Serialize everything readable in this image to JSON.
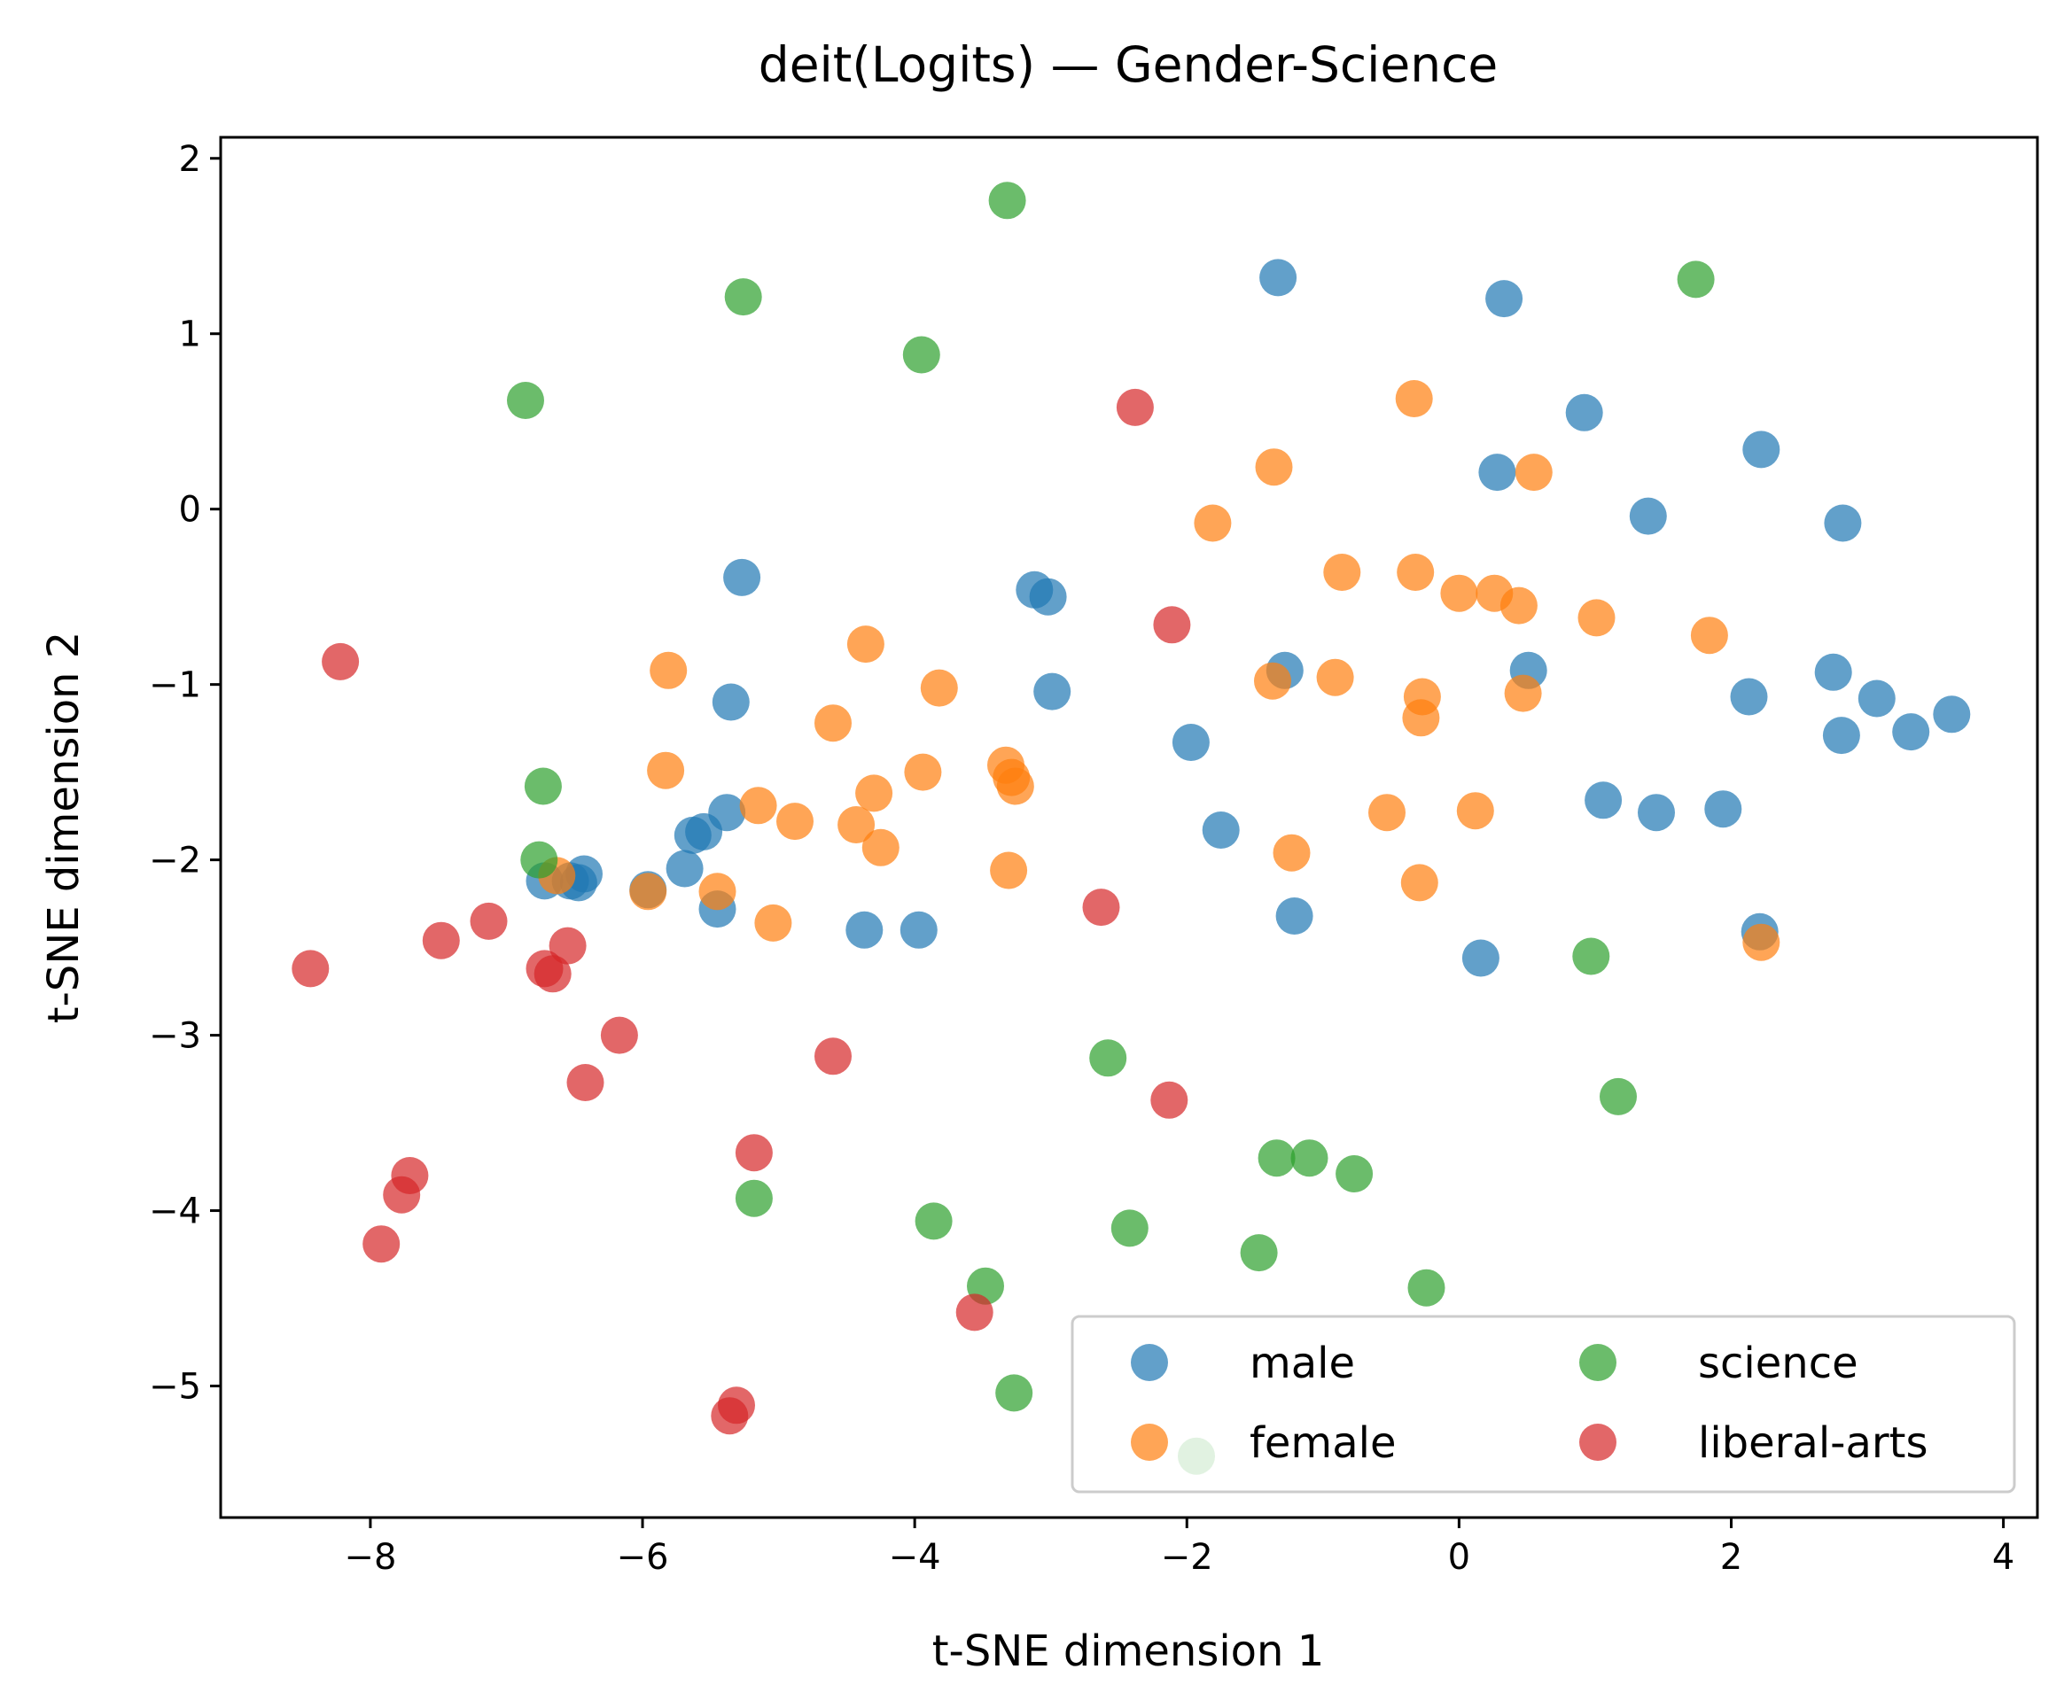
{
  "chart_data": {
    "type": "scatter",
    "title": "deit(Logits) — Gender-Science",
    "xlabel": "t-SNE dimension 1",
    "ylabel": "t-SNE dimension 2",
    "xlim": [
      -9.1,
      4.25
    ],
    "ylim": [
      -5.75,
      2.12
    ],
    "xticks": [
      -8,
      -6,
      -4,
      -2,
      0,
      2,
      4
    ],
    "yticks": [
      -5,
      -4,
      -3,
      -2,
      -1,
      0,
      1,
      2
    ],
    "grid": false,
    "legend_position": "lower-right",
    "legend_columns": 2,
    "series": [
      {
        "name": "male",
        "color": "#1f77b4",
        "points": [
          [
            -1.33,
            1.32
          ],
          [
            0.33,
            1.2
          ],
          [
            0.92,
            0.55
          ],
          [
            2.22,
            0.34
          ],
          [
            0.28,
            0.21
          ],
          [
            1.39,
            -0.04
          ],
          [
            2.82,
            -0.08
          ],
          [
            -5.27,
            -0.39
          ],
          [
            -3.12,
            -0.46
          ],
          [
            -3.02,
            -0.5
          ],
          [
            -1.28,
            -0.92
          ],
          [
            0.51,
            -0.92
          ],
          [
            -2.99,
            -1.04
          ],
          [
            -5.35,
            -1.1
          ],
          [
            2.13,
            -1.07
          ],
          [
            2.75,
            -0.93
          ],
          [
            3.07,
            -1.08
          ],
          [
            3.32,
            -1.27
          ],
          [
            3.62,
            -1.17
          ],
          [
            2.81,
            -1.29
          ],
          [
            -1.97,
            -1.33
          ],
          [
            1.06,
            -1.66
          ],
          [
            1.45,
            -1.73
          ],
          [
            1.94,
            -1.71
          ],
          [
            -5.38,
            -1.73
          ],
          [
            -5.55,
            -1.84
          ],
          [
            -5.63,
            -1.86
          ],
          [
            -1.75,
            -1.83
          ],
          [
            -5.69,
            -2.05
          ],
          [
            -6.43,
            -2.08
          ],
          [
            -6.53,
            -2.12
          ],
          [
            -6.47,
            -2.13
          ],
          [
            -6.72,
            -2.12
          ],
          [
            -5.96,
            -2.17
          ],
          [
            -5.45,
            -2.28
          ],
          [
            -4.37,
            -2.4
          ],
          [
            -3.97,
            -2.4
          ],
          [
            -1.21,
            -2.32
          ],
          [
            0.16,
            -2.56
          ],
          [
            2.21,
            -2.41
          ]
        ]
      },
      {
        "name": "female",
        "color": "#ff7f0e",
        "points": [
          [
            -0.33,
            0.63
          ],
          [
            -1.36,
            0.24
          ],
          [
            0.55,
            0.21
          ],
          [
            -1.81,
            -0.08
          ],
          [
            -0.86,
            -0.36
          ],
          [
            -0.32,
            -0.36
          ],
          [
            0.0,
            -0.48
          ],
          [
            0.26,
            -0.48
          ],
          [
            0.44,
            -0.55
          ],
          [
            1.01,
            -0.62
          ],
          [
            1.84,
            -0.72
          ],
          [
            -4.36,
            -0.77
          ],
          [
            -5.81,
            -0.92
          ],
          [
            -3.82,
            -1.02
          ],
          [
            -0.91,
            -0.96
          ],
          [
            -1.37,
            -0.98
          ],
          [
            -0.27,
            -1.07
          ],
          [
            0.47,
            -1.05
          ],
          [
            -0.28,
            -1.19
          ],
          [
            -4.6,
            -1.22
          ],
          [
            -5.83,
            -1.49
          ],
          [
            -3.94,
            -1.5
          ],
          [
            -3.33,
            -1.46
          ],
          [
            -3.29,
            -1.53
          ],
          [
            -3.26,
            -1.58
          ],
          [
            -4.3,
            -1.62
          ],
          [
            -5.15,
            -1.69
          ],
          [
            -4.88,
            -1.78
          ],
          [
            -4.43,
            -1.8
          ],
          [
            -4.25,
            -1.93
          ],
          [
            -0.53,
            -1.73
          ],
          [
            0.12,
            -1.72
          ],
          [
            -1.23,
            -1.96
          ],
          [
            -3.31,
            -2.06
          ],
          [
            -0.29,
            -2.13
          ],
          [
            -5.96,
            -2.18
          ],
          [
            -5.45,
            -2.18
          ],
          [
            -5.04,
            -2.36
          ],
          [
            -6.63,
            -2.09
          ],
          [
            2.22,
            -2.47
          ]
        ]
      },
      {
        "name": "science",
        "color": "#2ca02c",
        "points": [
          [
            -3.32,
            1.76
          ],
          [
            -5.26,
            1.21
          ],
          [
            1.74,
            1.31
          ],
          [
            -3.95,
            0.88
          ],
          [
            -6.86,
            0.62
          ],
          [
            -6.73,
            -1.58
          ],
          [
            -6.76,
            -2.0
          ],
          [
            0.97,
            -2.55
          ],
          [
            -2.58,
            -3.13
          ],
          [
            1.17,
            -3.35
          ],
          [
            -1.34,
            -3.7
          ],
          [
            -1.1,
            -3.7
          ],
          [
            -0.77,
            -3.79
          ],
          [
            -5.18,
            -3.93
          ],
          [
            -3.86,
            -4.06
          ],
          [
            -2.42,
            -4.1
          ],
          [
            -1.47,
            -4.24
          ],
          [
            -0.24,
            -4.44
          ],
          [
            -3.48,
            -4.43
          ],
          [
            -3.27,
            -5.04
          ],
          [
            -1.93,
            -5.4
          ]
        ]
      },
      {
        "name": "liberal-arts",
        "color": "#d62728",
        "points": [
          [
            -2.38,
            0.58
          ],
          [
            -8.22,
            -0.87
          ],
          [
            -2.11,
            -0.66
          ],
          [
            -7.13,
            -2.35
          ],
          [
            -7.48,
            -2.46
          ],
          [
            -6.55,
            -2.49
          ],
          [
            -6.72,
            -2.62
          ],
          [
            -6.66,
            -2.65
          ],
          [
            -8.44,
            -2.62
          ],
          [
            -2.63,
            -2.27
          ],
          [
            -6.17,
            -3.0
          ],
          [
            -4.6,
            -3.12
          ],
          [
            -6.42,
            -3.27
          ],
          [
            -2.13,
            -3.37
          ],
          [
            -5.18,
            -3.67
          ],
          [
            -7.71,
            -3.8
          ],
          [
            -7.77,
            -3.91
          ],
          [
            -7.92,
            -4.19
          ],
          [
            -3.56,
            -4.58
          ],
          [
            -5.31,
            -5.11
          ],
          [
            -5.36,
            -5.17
          ]
        ]
      }
    ]
  }
}
